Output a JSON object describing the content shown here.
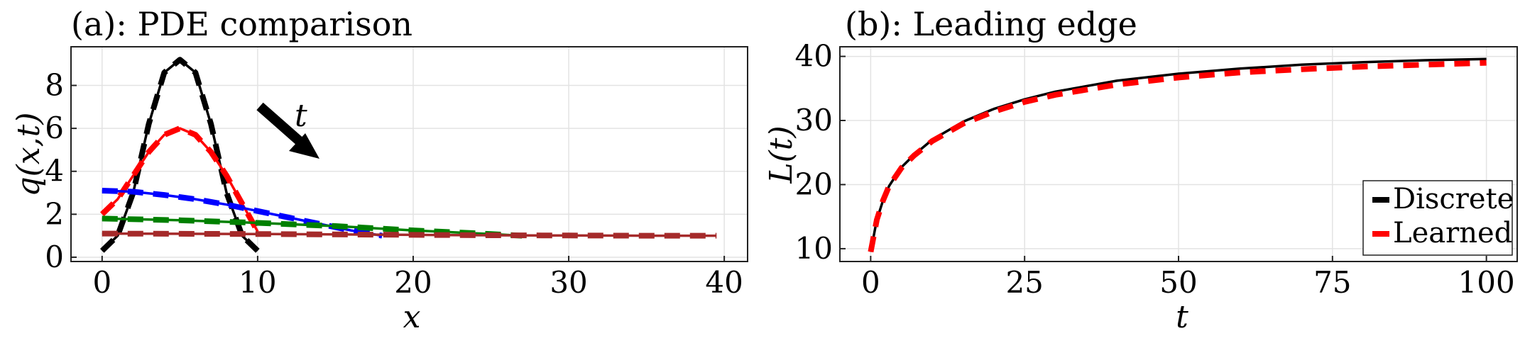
{
  "chart_data": [
    {
      "type": "line",
      "title": "(a): PDE comparison",
      "xlabel": "x",
      "ylabel": "q(x,t)",
      "xlim": [
        -2,
        41.5
      ],
      "ylim": [
        -0.2,
        9.8
      ],
      "xticks": [
        0,
        10,
        20,
        30,
        40
      ],
      "yticks": [
        0,
        2,
        4,
        6,
        8
      ],
      "xtick_labels": [
        "0",
        "10",
        "20",
        "30",
        "40"
      ],
      "ytick_labels": [
        "0",
        "2",
        "4",
        "6",
        "8"
      ],
      "grid": true,
      "annotation": {
        "text": "t",
        "arrow_from": [
          10,
          7.1
        ],
        "arrow_to": [
          14,
          4.5
        ]
      },
      "series": [
        {
          "color": "#000000",
          "style": "solid",
          "x": [
            0,
            1,
            2,
            3,
            4,
            5,
            6,
            7,
            8,
            9,
            10
          ],
          "y": [
            0.3,
            1.0,
            3.0,
            6.2,
            8.6,
            9.2,
            8.6,
            6.2,
            3.0,
            1.0,
            0.3
          ]
        },
        {
          "color": "#000000",
          "style": "dashed",
          "x": [
            0,
            1,
            2,
            3,
            4,
            5,
            6,
            7,
            8,
            9,
            10
          ],
          "y": [
            0.3,
            1.0,
            3.0,
            6.2,
            8.6,
            9.2,
            8.6,
            6.2,
            3.0,
            1.0,
            0.3
          ]
        },
        {
          "color": "#ff0000",
          "style": "solid",
          "x": [
            0,
            1,
            2,
            3,
            4,
            5,
            6,
            7,
            8,
            9,
            10
          ],
          "y": [
            2.0,
            2.7,
            3.8,
            4.9,
            5.7,
            6.0,
            5.7,
            4.9,
            3.8,
            2.5,
            1.2
          ]
        },
        {
          "color": "#ff0000",
          "style": "dashed",
          "x": [
            0,
            1,
            2,
            3,
            4,
            5,
            6,
            7,
            8,
            9,
            10
          ],
          "y": [
            2.0,
            2.7,
            3.8,
            4.9,
            5.7,
            6.0,
            5.7,
            4.9,
            3.8,
            2.5,
            1.2
          ]
        },
        {
          "color": "#0000ff",
          "style": "solid",
          "x": [
            0,
            2,
            4,
            6,
            8,
            10,
            12,
            14,
            16,
            18
          ],
          "y": [
            3.1,
            3.05,
            2.9,
            2.7,
            2.45,
            2.15,
            1.85,
            1.55,
            1.25,
            1.0
          ]
        },
        {
          "color": "#0000ff",
          "style": "dashed",
          "x": [
            0,
            2,
            4,
            6,
            8,
            10,
            12,
            14,
            16,
            18
          ],
          "y": [
            3.1,
            3.05,
            2.9,
            2.7,
            2.45,
            2.15,
            1.85,
            1.55,
            1.25,
            1.0
          ]
        },
        {
          "color": "#008000",
          "style": "solid",
          "x": [
            0,
            5,
            10,
            15,
            20,
            25,
            27
          ],
          "y": [
            1.8,
            1.72,
            1.6,
            1.45,
            1.25,
            1.08,
            1.0
          ]
        },
        {
          "color": "#008000",
          "style": "dashed",
          "x": [
            0,
            5,
            10,
            15,
            20,
            25,
            27
          ],
          "y": [
            1.8,
            1.72,
            1.6,
            1.45,
            1.25,
            1.08,
            1.0
          ]
        },
        {
          "color": "#a52a2a",
          "style": "solid",
          "x": [
            0,
            5,
            10,
            15,
            20,
            25,
            30,
            35,
            39.5
          ],
          "y": [
            1.1,
            1.09,
            1.08,
            1.06,
            1.04,
            1.02,
            1.01,
            1.0,
            1.0
          ]
        },
        {
          "color": "#a52a2a",
          "style": "dashed",
          "x": [
            0,
            5,
            10,
            15,
            20,
            25,
            30,
            35,
            39.5
          ],
          "y": [
            1.1,
            1.09,
            1.08,
            1.06,
            1.04,
            1.02,
            1.01,
            1.0,
            1.0
          ]
        }
      ]
    },
    {
      "type": "line",
      "title": "(b): Leading edge",
      "xlabel": "t",
      "ylabel": "L(t)",
      "xlim": [
        -5,
        105
      ],
      "ylim": [
        8,
        41.5
      ],
      "xticks": [
        0,
        25,
        50,
        75,
        100
      ],
      "yticks": [
        10,
        20,
        30,
        40
      ],
      "xtick_labels": [
        "0",
        "25",
        "50",
        "75",
        "100"
      ],
      "ytick_labels": [
        "10",
        "20",
        "30",
        "40"
      ],
      "grid": true,
      "legend_position": "bottom-right",
      "series": [
        {
          "name": "Discrete",
          "color": "#000000",
          "style": "solid",
          "x": [
            0,
            1,
            2,
            3,
            5,
            7,
            10,
            15,
            20,
            25,
            30,
            40,
            50,
            60,
            70,
            80,
            90,
            100
          ],
          "y": [
            9.5,
            14.5,
            17.5,
            19.8,
            22.7,
            24.6,
            27.0,
            29.8,
            31.8,
            33.3,
            34.5,
            36.2,
            37.3,
            38.1,
            38.7,
            39.1,
            39.4,
            39.6
          ]
        },
        {
          "name": "Learned",
          "color": "#ff0000",
          "style": "dashed",
          "x": [
            0,
            1,
            2,
            3,
            5,
            7,
            10,
            15,
            20,
            25,
            30,
            40,
            50,
            60,
            70,
            80,
            90,
            100
          ],
          "y": [
            9.5,
            14.5,
            17.5,
            19.8,
            22.6,
            24.5,
            26.8,
            29.5,
            31.4,
            32.9,
            34.0,
            35.6,
            36.7,
            37.5,
            38.0,
            38.4,
            38.7,
            39.0
          ]
        }
      ]
    }
  ]
}
